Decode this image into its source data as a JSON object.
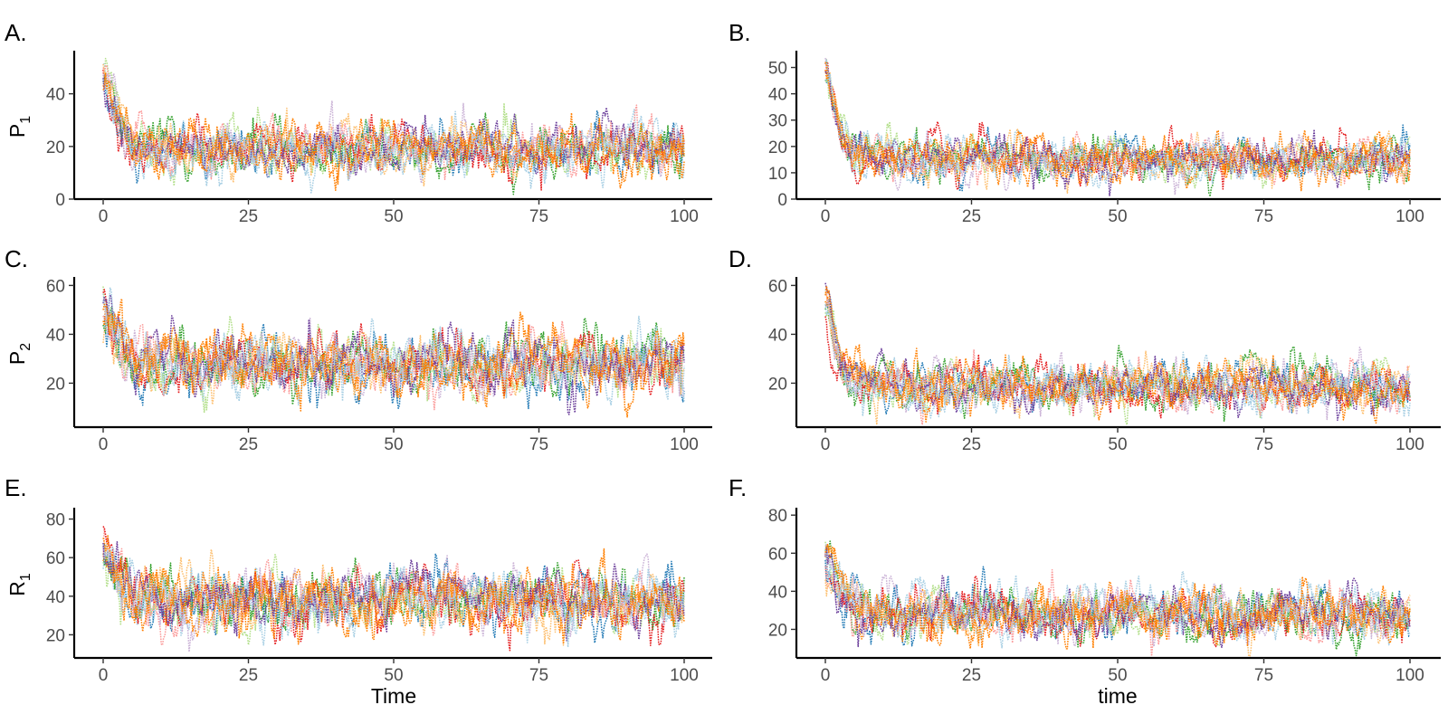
{
  "chart_data": [
    {
      "panel_label": "A.",
      "type": "line",
      "ylabel": "P",
      "ylabel_sub": "1",
      "xlabel": "",
      "xlim": [
        0,
        100
      ],
      "ylim": [
        0,
        55
      ],
      "x_ticks": [
        0,
        25,
        50,
        75,
        100
      ],
      "y_ticks": [
        0,
        20,
        40
      ],
      "grid": false,
      "n_series": 12,
      "start": 48,
      "mean": 19,
      "noise": 5.5,
      "decay": 1.8,
      "seed": 11,
      "series_summary": "12 stochastic realisations start near 48-55, drop within t<3 and fluctuate around ~19 (range ~5-42)"
    },
    {
      "panel_label": "B.",
      "type": "line",
      "ylabel": "",
      "ylabel_sub": "",
      "xlabel": "",
      "xlim": [
        0,
        100
      ],
      "ylim": [
        0,
        55
      ],
      "x_ticks": [
        0,
        25,
        50,
        75,
        100
      ],
      "y_ticks": [
        0,
        10,
        20,
        30,
        40,
        50
      ],
      "grid": false,
      "n_series": 12,
      "start": 50,
      "mean": 15,
      "noise": 4.5,
      "decay": 1.4,
      "seed": 23,
      "series_summary": "12 realisations start near 50-55, settle around ~15 (range ~3-32)"
    },
    {
      "panel_label": "C.",
      "type": "line",
      "ylabel": "P",
      "ylabel_sub": "2",
      "xlabel": "",
      "xlim": [
        0,
        100
      ],
      "ylim": [
        2,
        62
      ],
      "x_ticks": [
        0,
        25,
        50,
        75,
        100
      ],
      "y_ticks": [
        20,
        40,
        60
      ],
      "grid": false,
      "n_series": 12,
      "start": 52,
      "mean": 27,
      "noise": 7,
      "decay": 2.2,
      "seed": 37,
      "series_summary": "12 realisations start near 50-58, settle around ~27 (range ~6-54)"
    },
    {
      "panel_label": "D.",
      "type": "line",
      "ylabel": "",
      "ylabel_sub": "",
      "xlabel": "",
      "xlim": [
        0,
        100
      ],
      "ylim": [
        2,
        62
      ],
      "x_ticks": [
        0,
        25,
        50,
        75,
        100
      ],
      "y_ticks": [
        20,
        40,
        60
      ],
      "grid": false,
      "n_series": 12,
      "start": 54,
      "mean": 19,
      "noise": 5.5,
      "decay": 1.6,
      "seed": 41,
      "series_summary": "12 realisations start near 55-60, settle around ~19 (range ~5-44)"
    },
    {
      "panel_label": "E.",
      "type": "line",
      "ylabel": "R",
      "ylabel_sub": "1",
      "xlabel": "Time",
      "xlim": [
        0,
        100
      ],
      "ylim": [
        8,
        84
      ],
      "x_ticks": [
        0,
        25,
        50,
        75,
        100
      ],
      "y_ticks": [
        20,
        40,
        60,
        80
      ],
      "grid": false,
      "n_series": 12,
      "start": 62,
      "mean": 38,
      "noise": 9,
      "decay": 2.5,
      "seed": 53,
      "series_summary": "12 realisations start near 50-80, settle around ~38 (range ~12-77)"
    },
    {
      "panel_label": "F.",
      "type": "line",
      "ylabel": "",
      "ylabel_sub": "",
      "xlabel": "time",
      "xlim": [
        0,
        100
      ],
      "ylim": [
        5,
        82
      ],
      "x_ticks": [
        0,
        25,
        50,
        75,
        100
      ],
      "y_ticks": [
        20,
        40,
        60,
        80
      ],
      "grid": false,
      "n_series": 12,
      "start": 60,
      "mean": 28,
      "noise": 7.5,
      "decay": 2.0,
      "seed": 67,
      "series_summary": "12 realisations start near 55-78, settle around ~28 (range ~8-66)"
    }
  ],
  "palette": [
    "#a6cee3",
    "#1f78b4",
    "#b2df8a",
    "#33a02c",
    "#fb9a99",
    "#e31a1c",
    "#fdbf6f",
    "#ff7f00",
    "#cab2d6",
    "#6a3d9a",
    "#a6cee3",
    "#ff7f00"
  ]
}
